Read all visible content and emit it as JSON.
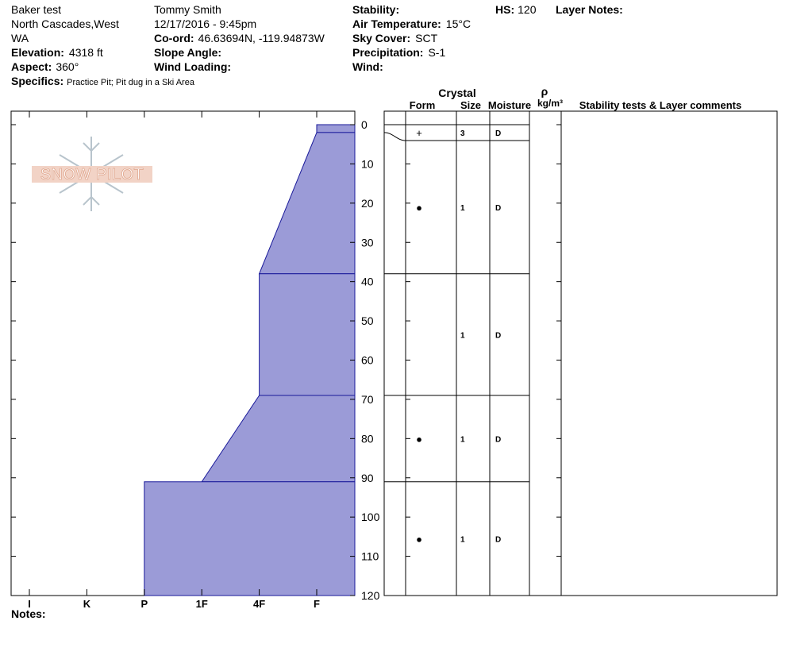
{
  "header": {
    "site": "Baker test",
    "region_lines": [
      "North Cascades,West",
      "WA"
    ],
    "observer": "Tommy Smith",
    "datetime": "12/17/2016 - 9:45pm",
    "elevation": {
      "label": "Elevation:",
      "value": "4318 ft"
    },
    "aspect": {
      "label": "Aspect:",
      "value": "360°"
    },
    "specifics": {
      "label": "Specifics:",
      "value": "Practice Pit; Pit dug in a Ski Area"
    },
    "coord": {
      "label": "Co-ord:",
      "value": "46.63694N, -119.94873W"
    },
    "slope_angle": {
      "label": "Slope Angle:"
    },
    "wind_loading": {
      "label": "Wind Loading:"
    },
    "stability": {
      "label": "Stability:"
    },
    "air_temperature": {
      "label": "Air Temperature:",
      "value": "15°C"
    },
    "sky_cover": {
      "label": "Sky Cover:",
      "value": "SCT"
    },
    "precipitation": {
      "label": "Precipitation:",
      "value": "S-1"
    },
    "wind": {
      "label": "Wind:"
    },
    "hs": {
      "label": "HS:",
      "value": 120
    },
    "layer_notes": {
      "label": "Layer Notes:"
    }
  },
  "logo": "SNOW PILOT",
  "columns": {
    "crystal": "Crystal",
    "form": "Form",
    "size": "Size",
    "moisture": "Moisture",
    "rho": "ρ",
    "density_unit": "kg/m³",
    "comments": "Stability tests & Layer comments"
  },
  "profile": {
    "depth_lim": [
      0,
      120
    ],
    "depth_ticks": [
      0,
      10,
      20,
      30,
      40,
      50,
      60,
      70,
      80,
      90,
      100,
      110,
      120
    ],
    "hardness_scale": [
      "I",
      "K",
      "P",
      "1F",
      "4F",
      "F"
    ],
    "layers": [
      {
        "top": 0,
        "bottom": 2,
        "hardness_top": "F",
        "hardness_bottom": "F",
        "form": "+",
        "size": 3,
        "moisture": "D"
      },
      {
        "top": 2,
        "bottom": 38,
        "hardness_top": "F",
        "hardness_bottom": "4F",
        "form": "●",
        "size": 1,
        "moisture": "D"
      },
      {
        "top": 38,
        "bottom": 69,
        "hardness_top": "4F",
        "hardness_bottom": "4F",
        "size": 1,
        "moisture": "D"
      },
      {
        "top": 69,
        "bottom": 91,
        "hardness_top": "4F",
        "hardness_bottom": "1F",
        "form": "●",
        "size": 1,
        "moisture": "D"
      },
      {
        "top": 91,
        "bottom": 120,
        "hardness_top": "P",
        "hardness_bottom": "P",
        "form": "●",
        "size": 1,
        "moisture": "D"
      }
    ]
  },
  "notes": "Notes:"
}
